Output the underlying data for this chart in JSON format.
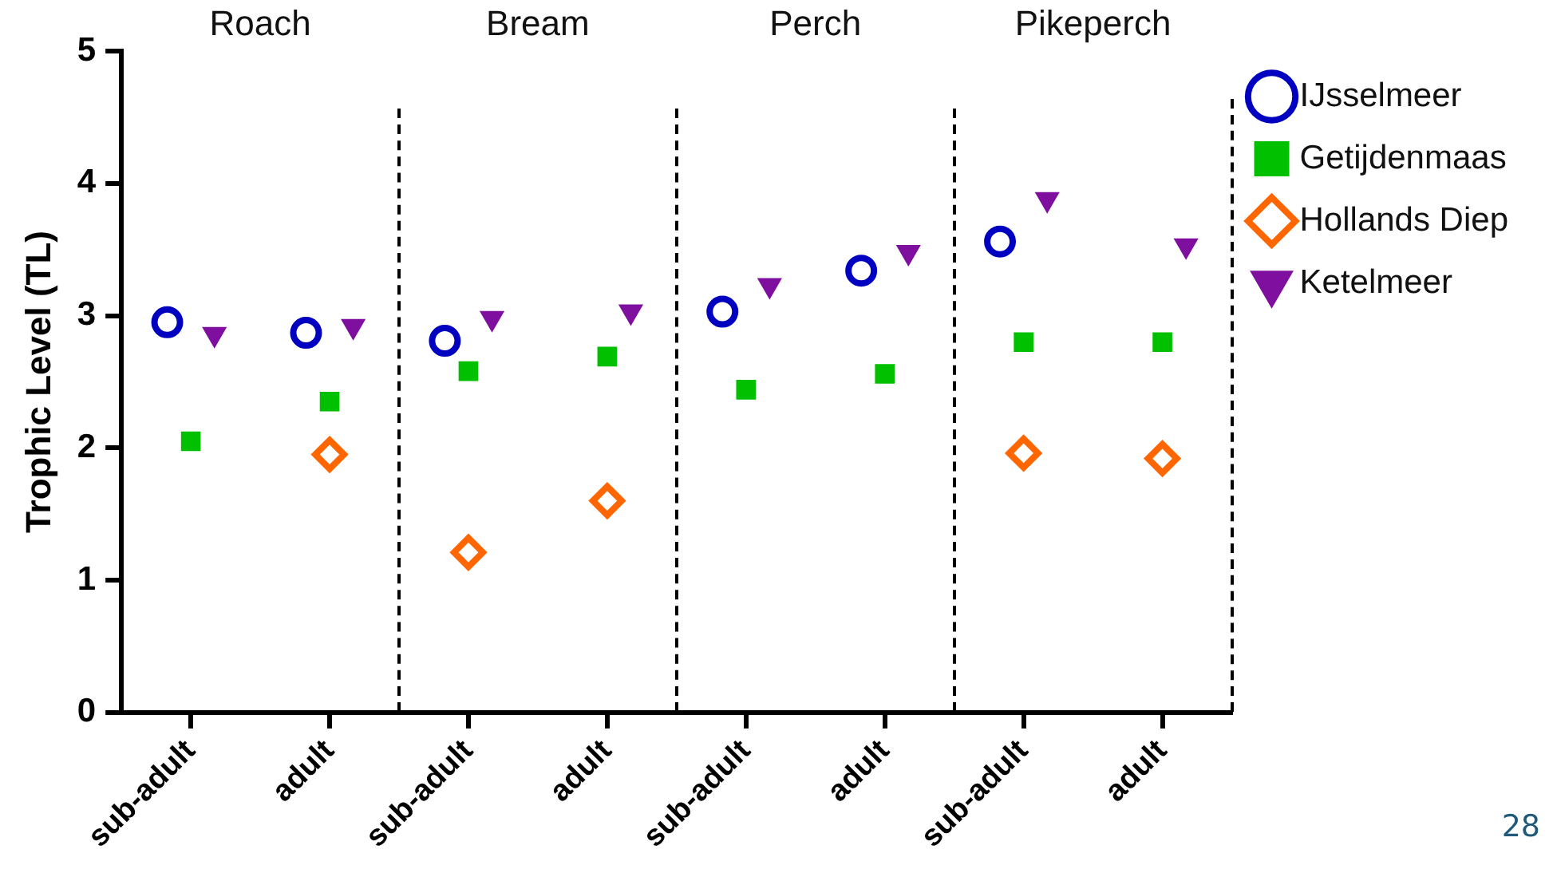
{
  "chart_data": {
    "type": "scatter",
    "ylabel": "Trophic Level (TL)",
    "categories": [
      "sub-adult",
      "adult",
      "sub-adult",
      "adult",
      "sub-adult",
      "adult",
      "sub-adult",
      "adult"
    ],
    "series": [
      {
        "name": "IJsselmeer",
        "color": "#0000c0",
        "marker": "circle",
        "values": [
          2.95,
          2.87,
          2.81,
          null,
          3.03,
          3.34,
          3.56,
          null
        ]
      },
      {
        "name": "Getijdenmaas",
        "color": "#00c000",
        "marker": "square",
        "values": [
          2.05,
          2.35,
          2.58,
          2.69,
          2.44,
          2.56,
          2.8,
          2.8
        ]
      },
      {
        "name": "Hollands Diep",
        "color": "#ff6600",
        "marker": "diamond",
        "values": [
          null,
          1.95,
          1.21,
          1.6,
          null,
          null,
          1.96,
          1.92
        ]
      },
      {
        "name": "Ketelmeer",
        "color": "#7f0f9f",
        "marker": "triangle",
        "values": [
          2.86,
          2.92,
          2.98,
          3.03,
          3.23,
          3.48,
          3.88,
          3.53
        ]
      }
    ],
    "ylim": [
      0,
      5
    ],
    "yticks": [
      0,
      1,
      2,
      3,
      4,
      5
    ],
    "grid": false,
    "legend": "right",
    "annotations": [
      "Roach",
      "Bream",
      "Perch",
      "Pikeperch",
      "28"
    ]
  }
}
